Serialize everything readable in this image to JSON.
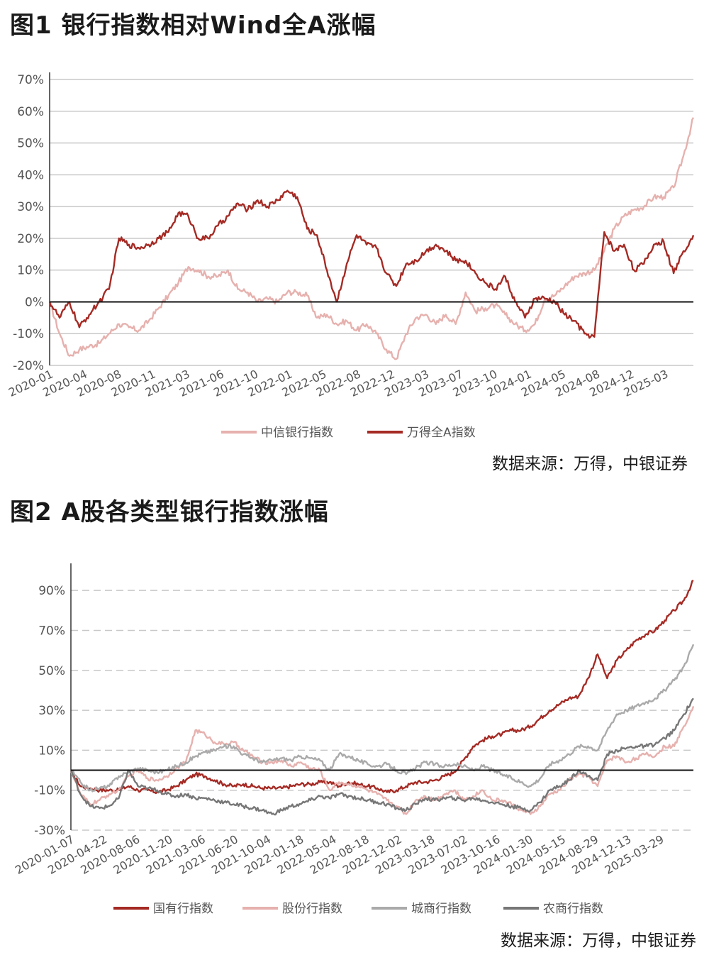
{
  "figure1": {
    "title": "图1  银行指数相对Wind全A涨幅",
    "source": "数据来源：万得，中银证券",
    "colors": {
      "bank": "#e6b1ae",
      "wind": "#a52a24"
    },
    "chart_data": {
      "type": "line",
      "ylim": [
        -0.2,
        0.7
      ],
      "yticks": [
        -0.2,
        -0.1,
        0,
        0.1,
        0.2,
        0.3,
        0.4,
        0.5,
        0.6,
        0.7
      ],
      "ytick_labels": [
        "-20%",
        "-10%",
        "0%",
        "10%",
        "20%",
        "30%",
        "40%",
        "50%",
        "60%",
        "70%"
      ],
      "grid": true,
      "legend_position": "bottom",
      "x_tick_labels": [
        "2020-01",
        "2020-04",
        "2020-08",
        "2020-11",
        "2021-03",
        "2021-06",
        "2021-10",
        "2022-01",
        "2022-05",
        "2022-08",
        "2022-12",
        "2023-03",
        "2023-07",
        "2023-10",
        "2024-01",
        "2024-05",
        "2024-08",
        "2024-12",
        "2025-03"
      ],
      "x": [
        "2020-01",
        "2020-02",
        "2020-03",
        "2020-04",
        "2020-05",
        "2020-06",
        "2020-07",
        "2020-08",
        "2020-09",
        "2020-10",
        "2020-11",
        "2020-12",
        "2021-01",
        "2021-02",
        "2021-03",
        "2021-04",
        "2021-05",
        "2021-06",
        "2021-07",
        "2021-08",
        "2021-09",
        "2021-10",
        "2021-11",
        "2021-12",
        "2022-01",
        "2022-02",
        "2022-03",
        "2022-04",
        "2022-05",
        "2022-06",
        "2022-07",
        "2022-08",
        "2022-09",
        "2022-10",
        "2022-11",
        "2022-12",
        "2023-01",
        "2023-02",
        "2023-03",
        "2023-04",
        "2023-05",
        "2023-06",
        "2023-07",
        "2023-08",
        "2023-09",
        "2023-10",
        "2023-11",
        "2023-12",
        "2024-01",
        "2024-02",
        "2024-03",
        "2024-04",
        "2024-05",
        "2024-06",
        "2024-07",
        "2024-08",
        "2024-09",
        "2024-10",
        "2024-11",
        "2024-12",
        "2025-01",
        "2025-02",
        "2025-03",
        "2025-04",
        "2025-05",
        "2025-06"
      ],
      "series": [
        {
          "name": "中信银行指数",
          "key": "bank",
          "values": [
            0.0,
            -0.1,
            -0.17,
            -0.15,
            -0.14,
            -0.13,
            -0.1,
            -0.07,
            -0.08,
            -0.09,
            -0.06,
            -0.02,
            0.02,
            0.06,
            0.11,
            0.1,
            0.08,
            0.08,
            0.1,
            0.04,
            0.03,
            0.0,
            0.01,
            0.0,
            0.03,
            0.03,
            0.02,
            -0.05,
            -0.04,
            -0.07,
            -0.06,
            -0.09,
            -0.07,
            -0.1,
            -0.15,
            -0.18,
            -0.1,
            -0.05,
            -0.04,
            -0.07,
            -0.04,
            -0.07,
            0.03,
            -0.03,
            -0.02,
            -0.01,
            -0.04,
            -0.07,
            -0.09,
            -0.07,
            0.01,
            0.02,
            0.05,
            0.08,
            0.09,
            0.1,
            0.16,
            0.23,
            0.27,
            0.29,
            0.3,
            0.33,
            0.33,
            0.36,
            0.46,
            0.58
          ]
        },
        {
          "name": "万得全A指数",
          "key": "wind",
          "values": [
            0.0,
            -0.05,
            0.0,
            -0.08,
            -0.04,
            0.0,
            0.04,
            0.2,
            0.18,
            0.17,
            0.18,
            0.2,
            0.22,
            0.28,
            0.27,
            0.2,
            0.2,
            0.24,
            0.27,
            0.31,
            0.29,
            0.32,
            0.3,
            0.32,
            0.35,
            0.33,
            0.23,
            0.21,
            0.1,
            0.0,
            0.12,
            0.21,
            0.18,
            0.17,
            0.09,
            0.05,
            0.12,
            0.13,
            0.16,
            0.18,
            0.16,
            0.13,
            0.13,
            0.09,
            0.06,
            0.04,
            0.08,
            0.0,
            -0.05,
            0.01,
            0.01,
            0.0,
            -0.04,
            -0.06,
            -0.1,
            -0.11,
            0.22,
            0.16,
            0.18,
            0.1,
            0.12,
            0.18,
            0.19,
            0.09,
            0.16,
            0.21
          ]
        }
      ],
      "legend": [
        "中信银行指数",
        "万得全A指数"
      ]
    }
  },
  "figure2": {
    "title": "图2  A股各类型银行指数涨幅",
    "source": "数据来源：万得，中银证券",
    "colors": {
      "state": "#a52a24",
      "joint": "#e6b1ae",
      "city": "#aaaaaa",
      "rural": "#777777"
    },
    "chart_data": {
      "type": "line",
      "ylim": [
        -0.3,
        1.0
      ],
      "yticks": [
        -0.3,
        -0.1,
        0.1,
        0.3,
        0.5,
        0.7,
        0.9
      ],
      "ytick_labels": [
        "-30%",
        "-10%",
        "10%",
        "30%",
        "50%",
        "70%",
        "90%"
      ],
      "grid": true,
      "legend_position": "bottom",
      "x_tick_labels": [
        "2020-01-07",
        "2020-04-22",
        "2020-08-06",
        "2020-11-20",
        "2021-03-06",
        "2021-06-20",
        "2021-10-04",
        "2022-01-18",
        "2022-05-04",
        "2022-08-18",
        "2022-12-02",
        "2023-03-18",
        "2023-07-02",
        "2023-10-16",
        "2024-01-30",
        "2024-05-15",
        "2024-08-29",
        "2024-12-13",
        "2025-03-29"
      ],
      "x": [
        "2020-01",
        "2020-02",
        "2020-03",
        "2020-04",
        "2020-05",
        "2020-06",
        "2020-07",
        "2020-08",
        "2020-09",
        "2020-10",
        "2020-11",
        "2020-12",
        "2021-01",
        "2021-02",
        "2021-03",
        "2021-04",
        "2021-05",
        "2021-06",
        "2021-07",
        "2021-08",
        "2021-09",
        "2021-10",
        "2021-11",
        "2021-12",
        "2022-01",
        "2022-02",
        "2022-03",
        "2022-04",
        "2022-05",
        "2022-06",
        "2022-07",
        "2022-08",
        "2022-09",
        "2022-10",
        "2022-11",
        "2022-12",
        "2023-01",
        "2023-02",
        "2023-03",
        "2023-04",
        "2023-05",
        "2023-06",
        "2023-07",
        "2023-08",
        "2023-09",
        "2023-10",
        "2023-11",
        "2023-12",
        "2024-01",
        "2024-02",
        "2024-03",
        "2024-04",
        "2024-05",
        "2024-06",
        "2024-07",
        "2024-08",
        "2024-09",
        "2024-10",
        "2024-11",
        "2024-12",
        "2025-01",
        "2025-02",
        "2025-03",
        "2025-04",
        "2025-05",
        "2025-06"
      ],
      "series": [
        {
          "name": "国有行指数",
          "key": "state",
          "values": [
            0.0,
            -0.08,
            -0.09,
            -0.1,
            -0.1,
            -0.1,
            -0.08,
            -0.1,
            -0.1,
            -0.11,
            -0.1,
            -0.08,
            -0.05,
            -0.02,
            -0.03,
            -0.05,
            -0.07,
            -0.08,
            -0.07,
            -0.08,
            -0.09,
            -0.09,
            -0.09,
            -0.08,
            -0.07,
            -0.07,
            -0.06,
            -0.06,
            -0.08,
            -0.06,
            -0.07,
            -0.08,
            -0.09,
            -0.11,
            -0.1,
            -0.08,
            -0.06,
            -0.06,
            -0.05,
            -0.03,
            -0.01,
            0.05,
            0.12,
            0.15,
            0.17,
            0.18,
            0.2,
            0.2,
            0.22,
            0.26,
            0.3,
            0.33,
            0.36,
            0.37,
            0.46,
            0.58,
            0.46,
            0.55,
            0.6,
            0.65,
            0.68,
            0.7,
            0.75,
            0.8,
            0.85,
            0.95
          ]
        },
        {
          "name": "股份行指数",
          "key": "joint",
          "values": [
            0.0,
            -0.12,
            -0.17,
            -0.15,
            -0.12,
            -0.1,
            -0.03,
            0.0,
            -0.04,
            -0.05,
            -0.03,
            0.01,
            0.04,
            0.2,
            0.18,
            0.14,
            0.13,
            0.14,
            0.1,
            0.07,
            0.04,
            0.04,
            0.05,
            0.02,
            0.04,
            0.01,
            0.0,
            -0.1,
            -0.06,
            -0.07,
            -0.08,
            -0.1,
            -0.12,
            -0.15,
            -0.18,
            -0.22,
            -0.15,
            -0.13,
            -0.15,
            -0.12,
            -0.1,
            -0.15,
            -0.13,
            -0.1,
            -0.15,
            -0.15,
            -0.17,
            -0.2,
            -0.22,
            -0.18,
            -0.12,
            -0.1,
            -0.05,
            -0.02,
            -0.03,
            -0.08,
            0.05,
            0.07,
            0.04,
            0.06,
            0.08,
            0.07,
            0.12,
            0.12,
            0.22,
            0.32
          ]
        },
        {
          "name": "城商行指数",
          "key": "city",
          "values": [
            0.0,
            -0.06,
            -0.1,
            -0.09,
            -0.08,
            -0.03,
            -0.01,
            0.01,
            0.0,
            -0.01,
            0.0,
            0.02,
            0.04,
            0.07,
            0.09,
            0.1,
            0.12,
            0.12,
            0.08,
            0.06,
            0.04,
            0.05,
            0.06,
            0.05,
            0.07,
            0.06,
            0.05,
            0.0,
            0.08,
            0.07,
            0.05,
            0.03,
            0.02,
            0.03,
            0.0,
            -0.02,
            0.01,
            0.04,
            0.03,
            0.02,
            0.03,
            0.02,
            0.0,
            0.02,
            0.0,
            -0.02,
            -0.04,
            -0.06,
            -0.08,
            -0.04,
            0.03,
            0.05,
            0.08,
            0.12,
            0.12,
            0.1,
            0.2,
            0.28,
            0.3,
            0.32,
            0.34,
            0.36,
            0.4,
            0.45,
            0.52,
            0.63
          ]
        },
        {
          "name": "农商行指数",
          "key": "rural",
          "values": [
            0.0,
            -0.12,
            -0.18,
            -0.19,
            -0.18,
            -0.14,
            0.0,
            -0.08,
            -0.09,
            -0.1,
            -0.12,
            -0.13,
            -0.12,
            -0.14,
            -0.14,
            -0.15,
            -0.16,
            -0.17,
            -0.18,
            -0.19,
            -0.2,
            -0.22,
            -0.2,
            -0.18,
            -0.17,
            -0.15,
            -0.13,
            -0.14,
            -0.12,
            -0.13,
            -0.14,
            -0.15,
            -0.16,
            -0.17,
            -0.19,
            -0.2,
            -0.17,
            -0.14,
            -0.15,
            -0.14,
            -0.14,
            -0.15,
            -0.14,
            -0.15,
            -0.16,
            -0.17,
            -0.18,
            -0.19,
            -0.2,
            -0.16,
            -0.1,
            -0.08,
            -0.05,
            0.0,
            -0.03,
            -0.05,
            0.08,
            0.1,
            0.11,
            0.12,
            0.12,
            0.13,
            0.16,
            0.2,
            0.28,
            0.36
          ]
        }
      ],
      "legend": [
        "国有行指数",
        "股份行指数",
        "城商行指数",
        "农商行指数"
      ]
    }
  }
}
